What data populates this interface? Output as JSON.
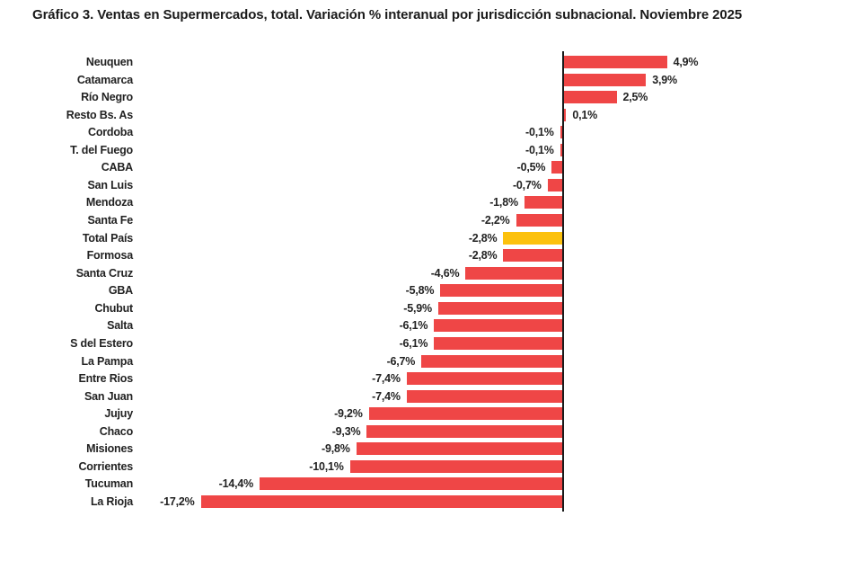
{
  "chart_data": {
    "type": "bar",
    "orientation": "horizontal",
    "title": "Gráfico 3. Ventas en Supermercados, total. Variación % interanual por jurisdicción subnacional. Noviembre 2025",
    "categories": [
      "Neuquen",
      "Catamarca",
      "Río Negro",
      "Resto Bs. As",
      "Cordoba",
      "T. del Fuego",
      "CABA",
      "San Luis",
      "Mendoza",
      "Santa Fe",
      "Total País",
      "Formosa",
      "Santa Cruz",
      "GBA",
      "Chubut",
      "Salta",
      "S del Estero",
      "La Pampa",
      "Entre Rios",
      "San Juan",
      "Jujuy",
      "Chaco",
      "Misiones",
      "Corrientes",
      "Tucuman",
      "La Rioja"
    ],
    "values": [
      4.9,
      3.9,
      2.5,
      0.1,
      -0.1,
      -0.1,
      -0.5,
      -0.7,
      -1.8,
      -2.2,
      -2.8,
      -2.8,
      -4.6,
      -5.8,
      -5.9,
      -6.1,
      -6.1,
      -6.7,
      -7.4,
      -7.4,
      -9.2,
      -9.3,
      -9.8,
      -10.1,
      -14.4,
      -17.2
    ],
    "value_labels": [
      "4,9%",
      "3,9%",
      "2,5%",
      "0,1%",
      "-0,1%",
      "-0,1%",
      "-0,5%",
      "-0,7%",
      "-1,8%",
      "-2,2%",
      "-2,8%",
      "-2,8%",
      "-4,6%",
      "-5,8%",
      "-5,9%",
      "-6,1%",
      "-6,1%",
      "-6,7%",
      "-7,4%",
      "-7,4%",
      "-9,2%",
      "-9,3%",
      "-9,8%",
      "-10,1%",
      "-14,4%",
      "-17,2%"
    ],
    "highlight_category": "Total País",
    "bar_color": "#EF4646",
    "highlight_color": "#FCC10D",
    "axis_color": "#1a1a1a",
    "text_color": "#222222",
    "xlabel": "",
    "ylabel": "",
    "xlim": [
      -18,
      7
    ],
    "grid": false,
    "legend": null,
    "unit": "%",
    "decimal_separator": ","
  }
}
